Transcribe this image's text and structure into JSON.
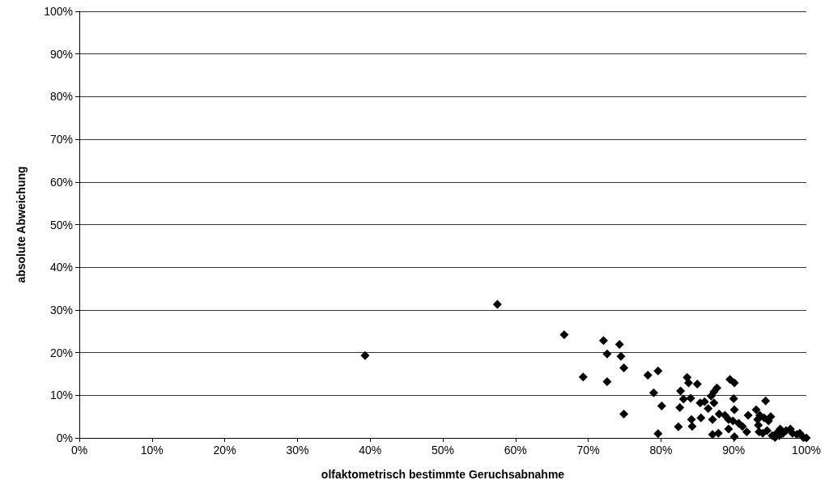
{
  "chart_data": {
    "type": "scatter",
    "xlabel": "olfaktometrisch bestimmte Geruchsabnahme",
    "ylabel": "absolute Abweichung",
    "x": [
      39.3,
      57.5,
      66.7,
      72.1,
      74.3,
      72.6,
      74.5,
      74.9,
      69.3,
      72.6,
      78.2,
      79.6,
      79.0,
      80.1,
      74.9,
      79.6,
      83.6,
      83.8,
      85.0,
      82.7,
      83.1,
      84.1,
      82.6,
      82.4,
      84.2,
      84.3,
      85.5,
      85.4,
      86.0,
      86.5,
      86.9,
      87.3,
      87.7,
      87.3,
      87.1,
      88.0,
      88.8,
      87.1,
      87.9,
      89.5,
      90.1,
      90.0,
      90.1,
      89.3,
      89.3,
      90.1,
      89.9,
      90.7,
      91.2,
      92.0,
      91.8,
      93.1,
      93.3,
      93.4,
      93.6,
      94.4,
      94.2,
      94.8,
      95.1,
      93.5,
      94.0,
      94.6,
      95.3,
      95.9,
      96.4,
      96.8,
      97.2,
      97.8,
      98.1,
      98.7,
      99.1,
      99.6,
      100,
      96.3,
      95.7
    ],
    "values": [
      19.3,
      31.3,
      24.2,
      22.8,
      21.9,
      19.7,
      19.1,
      16.4,
      14.3,
      13.2,
      14.7,
      15.7,
      10.6,
      7.5,
      5.6,
      1.0,
      14.2,
      12.9,
      12.6,
      11.0,
      9.1,
      9.3,
      7.1,
      2.6,
      4.3,
      2.7,
      4.7,
      8.2,
      8.5,
      6.9,
      9.8,
      10.8,
      11.7,
      8.2,
      4.3,
      5.6,
      5.3,
      0.8,
      1.1,
      13.7,
      12.9,
      9.2,
      6.6,
      4.3,
      2.1,
      0.3,
      4.0,
      3.4,
      2.7,
      5.3,
      1.4,
      6.6,
      4.3,
      3.0,
      5.3,
      8.7,
      4.7,
      4.0,
      5.0,
      1.4,
      1.1,
      1.7,
      0.5,
      1.1,
      2.1,
      1.1,
      1.7,
      2.1,
      1.1,
      0.8,
      1.1,
      0.1,
      0,
      0.5,
      0.1
    ],
    "color": "#000000",
    "marker": "diamond",
    "grid": "y",
    "xlim": [
      0,
      100
    ],
    "ylim": [
      0,
      100
    ],
    "xticks": [
      {
        "value": 0,
        "label": "0%"
      },
      {
        "value": 10,
        "label": "10%"
      },
      {
        "value": 20,
        "label": "20%"
      },
      {
        "value": 30,
        "label": "30%"
      },
      {
        "value": 40,
        "label": "40%"
      },
      {
        "value": 50,
        "label": "50%"
      },
      {
        "value": 60,
        "label": "60%"
      },
      {
        "value": 70,
        "label": "70%"
      },
      {
        "value": 80,
        "label": "80%"
      },
      {
        "value": 90,
        "label": "90%"
      },
      {
        "value": 100,
        "label": "100%"
      }
    ],
    "yticks": [
      {
        "value": 0,
        "label": "0%"
      },
      {
        "value": 10,
        "label": "10%"
      },
      {
        "value": 20,
        "label": "20%"
      },
      {
        "value": 30,
        "label": "30%"
      },
      {
        "value": 40,
        "label": "40%"
      },
      {
        "value": 50,
        "label": "50%"
      },
      {
        "value": 60,
        "label": "60%"
      },
      {
        "value": 70,
        "label": "70%"
      },
      {
        "value": 80,
        "label": "80%"
      },
      {
        "value": 90,
        "label": "90%"
      },
      {
        "value": 100,
        "label": "100%"
      }
    ]
  }
}
